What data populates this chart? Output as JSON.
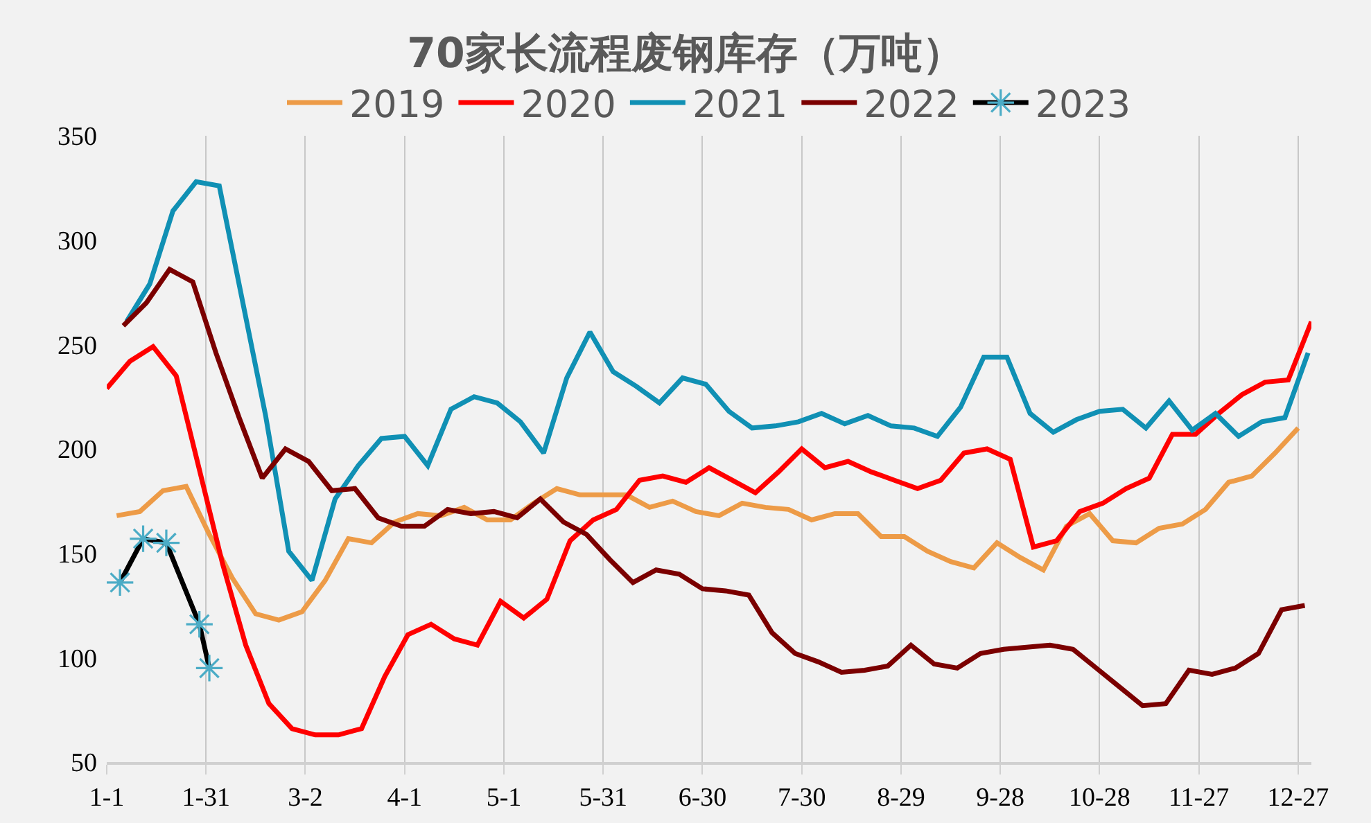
{
  "chart_data": {
    "type": "line",
    "title": "70家长流程废钢库存（万吨）",
    "legend": "top",
    "grid": "x",
    "xlim": [
      "--01-01",
      "--12-31"
    ],
    "xticks": [
      {
        "value": "--01-01",
        "label": "1-1"
      },
      {
        "value": "--01-31",
        "label": "1-31"
      },
      {
        "value": "--03-02",
        "label": "3-2"
      },
      {
        "value": "--04-01",
        "label": "4-1"
      },
      {
        "value": "--05-01",
        "label": "5-1"
      },
      {
        "value": "--05-31",
        "label": "5-31"
      },
      {
        "value": "--06-30",
        "label": "6-30"
      },
      {
        "value": "--07-30",
        "label": "7-30"
      },
      {
        "value": "--08-29",
        "label": "8-29"
      },
      {
        "value": "--09-28",
        "label": "9-28"
      },
      {
        "value": "--10-28",
        "label": "10-28"
      },
      {
        "value": "--11-27",
        "label": "11-27"
      },
      {
        "value": "--12-27",
        "label": "12-27"
      }
    ],
    "ylim": [
      50,
      350
    ],
    "yticks": [
      50,
      100,
      150,
      200,
      250,
      300,
      350
    ],
    "series": [
      {
        "name": "2019",
        "color": "#ed9b47",
        "x": [
          "--01-04",
          "--01-11",
          "--01-18",
          "--01-25",
          "--02-01",
          "--02-08",
          "--02-15",
          "--02-22",
          "--03-01",
          "--03-08",
          "--03-15",
          "--03-22",
          "--03-29",
          "--04-05",
          "--04-12",
          "--04-19",
          "--04-26",
          "--05-03",
          "--05-10",
          "--05-17",
          "--05-24",
          "--05-31",
          "--06-07",
          "--06-14",
          "--06-21",
          "--06-28",
          "--07-05",
          "--07-12",
          "--07-19",
          "--07-26",
          "--08-02",
          "--08-09",
          "--08-16",
          "--08-23",
          "--08-30",
          "--09-06",
          "--09-13",
          "--09-20",
          "--09-27",
          "--10-04",
          "--10-11",
          "--10-18",
          "--10-25",
          "--11-01",
          "--11-08",
          "--11-15",
          "--11-22",
          "--11-29",
          "--12-06",
          "--12-13",
          "--12-20",
          "--12-27"
        ],
        "values": [
          168,
          170,
          180,
          182,
          159,
          138,
          121,
          118,
          122,
          137,
          157,
          155,
          165,
          169,
          168,
          172,
          166,
          166,
          174,
          181,
          178,
          178,
          178,
          172,
          175,
          170,
          168,
          174,
          172,
          171,
          166,
          169,
          169,
          158,
          158,
          151,
          146,
          143,
          155,
          148,
          142,
          163,
          169,
          156,
          155,
          162,
          164,
          171,
          184,
          187,
          198,
          210
        ]
      },
      {
        "name": "2020",
        "color": "#ff0000",
        "x": [
          "--01-01",
          "--01-08",
          "--01-15",
          "--01-22",
          "--01-29",
          "--02-05",
          "--02-12",
          "--02-19",
          "--02-26",
          "--03-05",
          "--03-12",
          "--03-19",
          "--03-26",
          "--04-02",
          "--04-09",
          "--04-16",
          "--04-23",
          "--04-30",
          "--05-07",
          "--05-14",
          "--05-21",
          "--05-28",
          "--06-04",
          "--06-11",
          "--06-18",
          "--06-25",
          "--07-02",
          "--07-09",
          "--07-16",
          "--07-23",
          "--07-30",
          "--08-06",
          "--08-13",
          "--08-20",
          "--08-27",
          "--09-03",
          "--09-10",
          "--09-17",
          "--09-24",
          "--10-01",
          "--10-08",
          "--10-15",
          "--10-22",
          "--10-29",
          "--11-05",
          "--11-12",
          "--11-19",
          "--11-26",
          "--12-03",
          "--12-10",
          "--12-17",
          "--12-24",
          "--12-31"
        ],
        "values": [
          229,
          242,
          249,
          235,
          190,
          145,
          106,
          78,
          66,
          63,
          63,
          66,
          91,
          111,
          116,
          109,
          106,
          127,
          119,
          128,
          156,
          166,
          171,
          185,
          187,
          184,
          191,
          185,
          179,
          189,
          200,
          191,
          194,
          189,
          185,
          181,
          185,
          198,
          200,
          195,
          153,
          156,
          170,
          174,
          181,
          186,
          207,
          207,
          217,
          226,
          232,
          233,
          261
        ]
      },
      {
        "name": "2021",
        "color": "#1090b4",
        "x": [
          "--01-07",
          "--01-14",
          "--01-21",
          "--01-28",
          "--02-04",
          "--02-11",
          "--02-18",
          "--02-25",
          "--03-04",
          "--03-11",
          "--03-18",
          "--03-25",
          "--04-01",
          "--04-08",
          "--04-15",
          "--04-22",
          "--04-29",
          "--05-06",
          "--05-13",
          "--05-20",
          "--05-27",
          "--06-03",
          "--06-10",
          "--06-17",
          "--06-24",
          "--07-01",
          "--07-08",
          "--07-15",
          "--07-22",
          "--07-29",
          "--08-05",
          "--08-12",
          "--08-19",
          "--08-26",
          "--09-02",
          "--09-09",
          "--09-16",
          "--09-23",
          "--09-30",
          "--10-07",
          "--10-14",
          "--10-21",
          "--10-28",
          "--11-04",
          "--11-11",
          "--11-18",
          "--11-25",
          "--12-02",
          "--12-09",
          "--12-16",
          "--12-23",
          "--12-30"
        ],
        "values": [
          261,
          279,
          314,
          328,
          326,
          271,
          216,
          151,
          137,
          176,
          192,
          205,
          206,
          192,
          219,
          225,
          222,
          213,
          198,
          234,
          256,
          237,
          230,
          222,
          234,
          231,
          218,
          210,
          211,
          213,
          217,
          212,
          216,
          211,
          210,
          206,
          220,
          244,
          244,
          217,
          208,
          214,
          218,
          219,
          210,
          223,
          209,
          217,
          206,
          213,
          215,
          246
        ]
      },
      {
        "name": "2022",
        "color": "#7b0000",
        "x": [
          "--01-06",
          "--01-13",
          "--01-20",
          "--01-27",
          "--02-03",
          "--02-10",
          "--02-17",
          "--02-24",
          "--03-03",
          "--03-10",
          "--03-17",
          "--03-24",
          "--03-31",
          "--04-07",
          "--04-14",
          "--04-21",
          "--04-28",
          "--05-05",
          "--05-12",
          "--05-19",
          "--05-26",
          "--06-02",
          "--06-09",
          "--06-16",
          "--06-23",
          "--06-30",
          "--07-07",
          "--07-14",
          "--07-21",
          "--07-28",
          "--08-04",
          "--08-11",
          "--08-18",
          "--08-25",
          "--09-01",
          "--09-08",
          "--09-15",
          "--09-22",
          "--09-29",
          "--10-06",
          "--10-13",
          "--10-20",
          "--10-27",
          "--11-03",
          "--11-10",
          "--11-17",
          "--11-24",
          "--12-01",
          "--12-08",
          "--12-15",
          "--12-22",
          "--12-29"
        ],
        "values": [
          259,
          270,
          286,
          280,
          246,
          215,
          186,
          200,
          194,
          180,
          181,
          167,
          163,
          163,
          171,
          169,
          170,
          167,
          176,
          165,
          159,
          147,
          136,
          142,
          140,
          133,
          132,
          130,
          112,
          102,
          98,
          93,
          94,
          96,
          106,
          97,
          95,
          102,
          104,
          105,
          106,
          104,
          95,
          86,
          77,
          78,
          94,
          92,
          95,
          102,
          123,
          125
        ]
      },
      {
        "name": "2023",
        "color": "#000000",
        "marker": "cross",
        "colors": [
          "#4bacc6",
          "#4bacc6",
          "#4bacc6",
          "#4bacc6",
          "#4bacc6"
        ],
        "x": [
          "--01-05",
          "--01-12",
          "--01-19",
          "--01-29",
          "--02-01"
        ],
        "values": [
          136,
          157,
          155,
          116,
          95
        ]
      }
    ]
  }
}
